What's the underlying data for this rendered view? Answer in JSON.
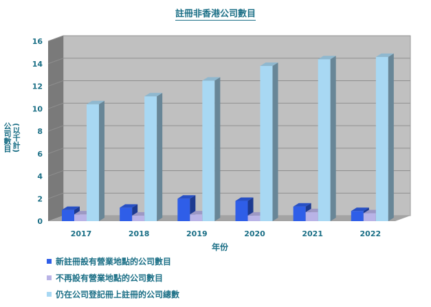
{
  "chart_data": {
    "type": "bar",
    "title": "註冊非香港公司數目",
    "xlabel": "年份",
    "ylabel": "公司數目",
    "ylabel_unit": "(以千計)",
    "ylim": [
      0,
      16
    ],
    "yticks": [
      "0",
      "2",
      "4",
      "6",
      "8",
      "10",
      "12",
      "14",
      "16"
    ],
    "categories": [
      "2017",
      "2018",
      "2019",
      "2020",
      "2021",
      "2022"
    ],
    "series": [
      {
        "name": "新註冊設有營業地點的公司數目",
        "color": "#2f5ee8",
        "values": [
          1.0,
          1.2,
          2.0,
          1.8,
          1.3,
          0.9
        ]
      },
      {
        "name": "不再設有營業地點的公司數目",
        "color": "#b9b3e6",
        "values": [
          0.6,
          0.5,
          0.6,
          0.5,
          0.8,
          0.7
        ]
      },
      {
        "name": "仍在公司登記冊上註冊的公司總數",
        "color": "#a8d8f3",
        "values": [
          10.4,
          11.1,
          12.5,
          13.8,
          14.4,
          14.6
        ]
      }
    ]
  }
}
